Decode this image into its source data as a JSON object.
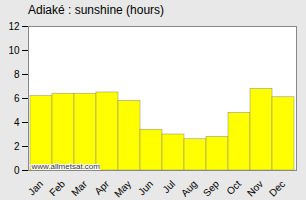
{
  "chart_data": {
    "type": "bar",
    "title": "Adiaké : sunshine (hours)",
    "categories": [
      "Jan",
      "Feb",
      "Mar",
      "Apr",
      "May",
      "Jun",
      "Jul",
      "Aug",
      "Sep",
      "Oct",
      "Nov",
      "Dec"
    ],
    "values": [
      6.2,
      6.4,
      6.4,
      6.5,
      5.8,
      3.4,
      3.0,
      2.6,
      2.8,
      4.8,
      6.8,
      6.1
    ],
    "color": "#ffff00",
    "ylim": [
      0,
      12
    ],
    "yticks": [
      0,
      2,
      4,
      6,
      8,
      10,
      12
    ],
    "grid": true,
    "annotations": [
      "www.allmetsat.com"
    ]
  }
}
